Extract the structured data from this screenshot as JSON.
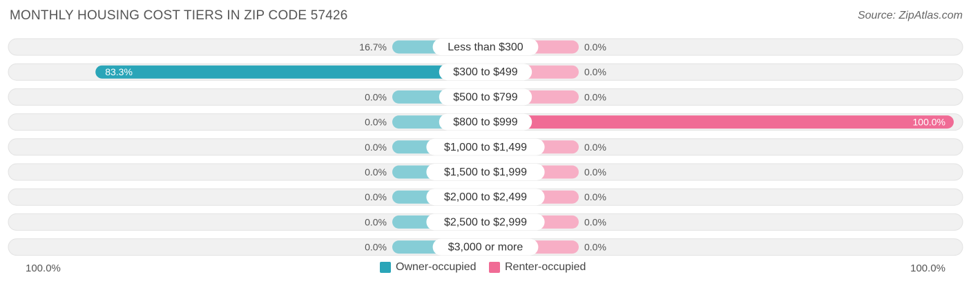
{
  "header": {
    "title": "MONTHLY HOUSING COST TIERS IN ZIP CODE 57426",
    "source": "Source: ZipAtlas.com"
  },
  "legend": {
    "owner_label": "Owner-occupied",
    "renter_label": "Renter-occupied"
  },
  "axis": {
    "left_label": "100.0%",
    "right_label": "100.0%"
  },
  "colors": {
    "owner": "#2aa5b8",
    "owner_light": "#86cdd6",
    "renter": "#f06b95",
    "renter_light": "#f7aec5",
    "track": "#eeeeee"
  },
  "chart_data": {
    "type": "bar",
    "orientation": "horizontal-diverging",
    "title": "MONTHLY HOUSING COST TIERS IN ZIP CODE 57426",
    "categories": [
      "Less than $300",
      "$300 to $499",
      "$500 to $799",
      "$800 to $999",
      "$1,000 to $1,499",
      "$1,500 to $1,999",
      "$2,000 to $2,499",
      "$2,500 to $2,999",
      "$3,000 or more"
    ],
    "series": [
      {
        "name": "Owner-occupied",
        "values": [
          16.7,
          83.3,
          0.0,
          0.0,
          0.0,
          0.0,
          0.0,
          0.0,
          0.0
        ]
      },
      {
        "name": "Renter-occupied",
        "values": [
          0.0,
          0.0,
          0.0,
          100.0,
          0.0,
          0.0,
          0.0,
          0.0,
          0.0
        ]
      }
    ],
    "value_labels": {
      "owner": [
        "16.7%",
        "83.3%",
        "0.0%",
        "0.0%",
        "0.0%",
        "0.0%",
        "0.0%",
        "0.0%",
        "0.0%"
      ],
      "renter": [
        "0.0%",
        "0.0%",
        "0.0%",
        "100.0%",
        "0.0%",
        "0.0%",
        "0.0%",
        "0.0%",
        "0.0%"
      ]
    },
    "xlim": [
      -100,
      100
    ],
    "legend_position": "bottom-center",
    "grid": false
  }
}
